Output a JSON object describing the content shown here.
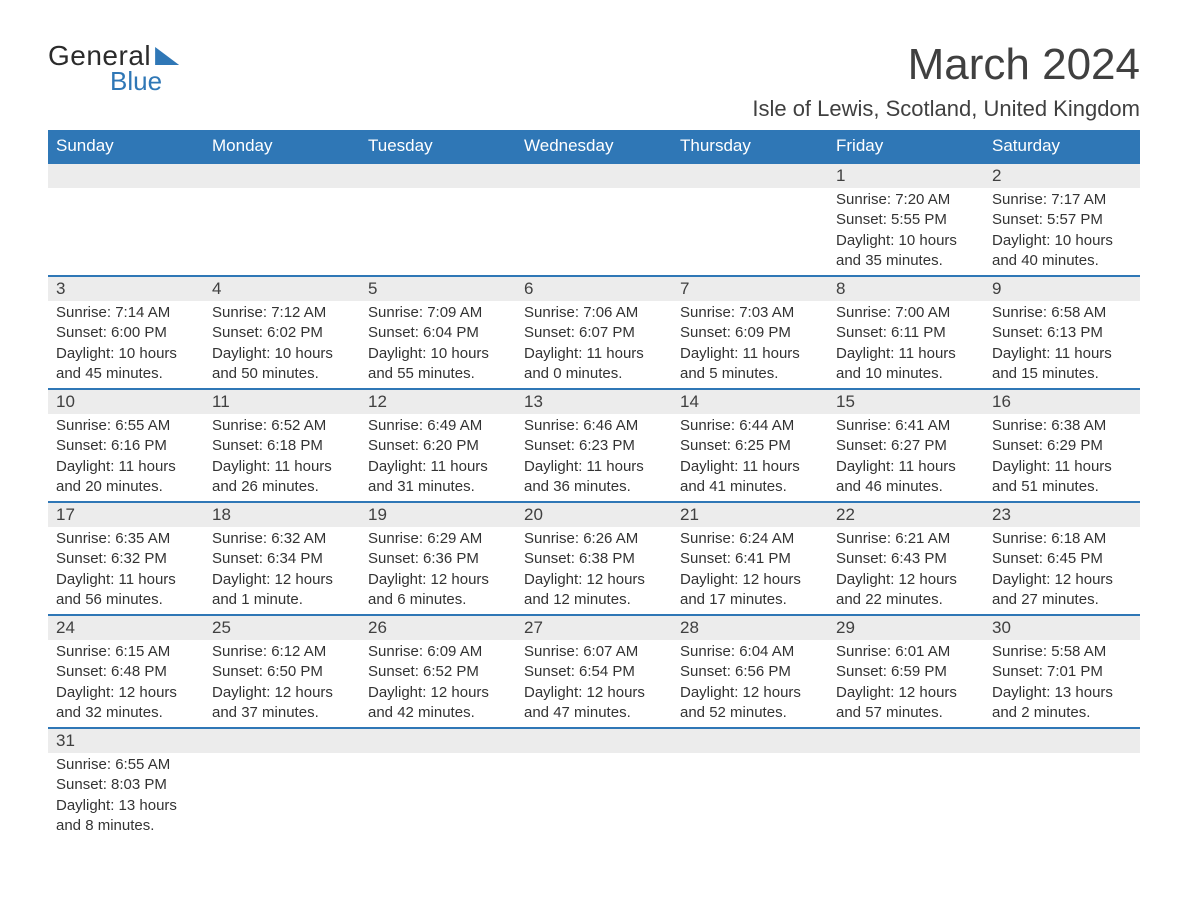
{
  "logo": {
    "text1": "General",
    "text2": "Blue",
    "accent_color": "#2f77b6"
  },
  "title": "March 2024",
  "location": "Isle of Lewis, Scotland, United Kingdom",
  "header_bg": "#2f77b6",
  "header_fg": "#ffffff",
  "daynum_bg": "#ececec",
  "text_color": "#333333",
  "font_family": "Arial, Helvetica, sans-serif",
  "days_of_week": [
    "Sunday",
    "Monday",
    "Tuesday",
    "Wednesday",
    "Thursday",
    "Friday",
    "Saturday"
  ],
  "weeks": [
    [
      null,
      null,
      null,
      null,
      null,
      {
        "n": "1",
        "sunrise": "7:20 AM",
        "sunset": "5:55 PM",
        "dl1": "10 hours",
        "dl2": "and 35 minutes."
      },
      {
        "n": "2",
        "sunrise": "7:17 AM",
        "sunset": "5:57 PM",
        "dl1": "10 hours",
        "dl2": "and 40 minutes."
      }
    ],
    [
      {
        "n": "3",
        "sunrise": "7:14 AM",
        "sunset": "6:00 PM",
        "dl1": "10 hours",
        "dl2": "and 45 minutes."
      },
      {
        "n": "4",
        "sunrise": "7:12 AM",
        "sunset": "6:02 PM",
        "dl1": "10 hours",
        "dl2": "and 50 minutes."
      },
      {
        "n": "5",
        "sunrise": "7:09 AM",
        "sunset": "6:04 PM",
        "dl1": "10 hours",
        "dl2": "and 55 minutes."
      },
      {
        "n": "6",
        "sunrise": "7:06 AM",
        "sunset": "6:07 PM",
        "dl1": "11 hours",
        "dl2": "and 0 minutes."
      },
      {
        "n": "7",
        "sunrise": "7:03 AM",
        "sunset": "6:09 PM",
        "dl1": "11 hours",
        "dl2": "and 5 minutes."
      },
      {
        "n": "8",
        "sunrise": "7:00 AM",
        "sunset": "6:11 PM",
        "dl1": "11 hours",
        "dl2": "and 10 minutes."
      },
      {
        "n": "9",
        "sunrise": "6:58 AM",
        "sunset": "6:13 PM",
        "dl1": "11 hours",
        "dl2": "and 15 minutes."
      }
    ],
    [
      {
        "n": "10",
        "sunrise": "6:55 AM",
        "sunset": "6:16 PM",
        "dl1": "11 hours",
        "dl2": "and 20 minutes."
      },
      {
        "n": "11",
        "sunrise": "6:52 AM",
        "sunset": "6:18 PM",
        "dl1": "11 hours",
        "dl2": "and 26 minutes."
      },
      {
        "n": "12",
        "sunrise": "6:49 AM",
        "sunset": "6:20 PM",
        "dl1": "11 hours",
        "dl2": "and 31 minutes."
      },
      {
        "n": "13",
        "sunrise": "6:46 AM",
        "sunset": "6:23 PM",
        "dl1": "11 hours",
        "dl2": "and 36 minutes."
      },
      {
        "n": "14",
        "sunrise": "6:44 AM",
        "sunset": "6:25 PM",
        "dl1": "11 hours",
        "dl2": "and 41 minutes."
      },
      {
        "n": "15",
        "sunrise": "6:41 AM",
        "sunset": "6:27 PM",
        "dl1": "11 hours",
        "dl2": "and 46 minutes."
      },
      {
        "n": "16",
        "sunrise": "6:38 AM",
        "sunset": "6:29 PM",
        "dl1": "11 hours",
        "dl2": "and 51 minutes."
      }
    ],
    [
      {
        "n": "17",
        "sunrise": "6:35 AM",
        "sunset": "6:32 PM",
        "dl1": "11 hours",
        "dl2": "and 56 minutes."
      },
      {
        "n": "18",
        "sunrise": "6:32 AM",
        "sunset": "6:34 PM",
        "dl1": "12 hours",
        "dl2": "and 1 minute."
      },
      {
        "n": "19",
        "sunrise": "6:29 AM",
        "sunset": "6:36 PM",
        "dl1": "12 hours",
        "dl2": "and 6 minutes."
      },
      {
        "n": "20",
        "sunrise": "6:26 AM",
        "sunset": "6:38 PM",
        "dl1": "12 hours",
        "dl2": "and 12 minutes."
      },
      {
        "n": "21",
        "sunrise": "6:24 AM",
        "sunset": "6:41 PM",
        "dl1": "12 hours",
        "dl2": "and 17 minutes."
      },
      {
        "n": "22",
        "sunrise": "6:21 AM",
        "sunset": "6:43 PM",
        "dl1": "12 hours",
        "dl2": "and 22 minutes."
      },
      {
        "n": "23",
        "sunrise": "6:18 AM",
        "sunset": "6:45 PM",
        "dl1": "12 hours",
        "dl2": "and 27 minutes."
      }
    ],
    [
      {
        "n": "24",
        "sunrise": "6:15 AM",
        "sunset": "6:48 PM",
        "dl1": "12 hours",
        "dl2": "and 32 minutes."
      },
      {
        "n": "25",
        "sunrise": "6:12 AM",
        "sunset": "6:50 PM",
        "dl1": "12 hours",
        "dl2": "and 37 minutes."
      },
      {
        "n": "26",
        "sunrise": "6:09 AM",
        "sunset": "6:52 PM",
        "dl1": "12 hours",
        "dl2": "and 42 minutes."
      },
      {
        "n": "27",
        "sunrise": "6:07 AM",
        "sunset": "6:54 PM",
        "dl1": "12 hours",
        "dl2": "and 47 minutes."
      },
      {
        "n": "28",
        "sunrise": "6:04 AM",
        "sunset": "6:56 PM",
        "dl1": "12 hours",
        "dl2": "and 52 minutes."
      },
      {
        "n": "29",
        "sunrise": "6:01 AM",
        "sunset": "6:59 PM",
        "dl1": "12 hours",
        "dl2": "and 57 minutes."
      },
      {
        "n": "30",
        "sunrise": "5:58 AM",
        "sunset": "7:01 PM",
        "dl1": "13 hours",
        "dl2": "and 2 minutes."
      }
    ],
    [
      {
        "n": "31",
        "sunrise": "6:55 AM",
        "sunset": "8:03 PM",
        "dl1": "13 hours",
        "dl2": "and 8 minutes."
      },
      null,
      null,
      null,
      null,
      null,
      null
    ]
  ],
  "labels": {
    "sunrise": "Sunrise:",
    "sunset": "Sunset:",
    "daylight": "Daylight:"
  }
}
